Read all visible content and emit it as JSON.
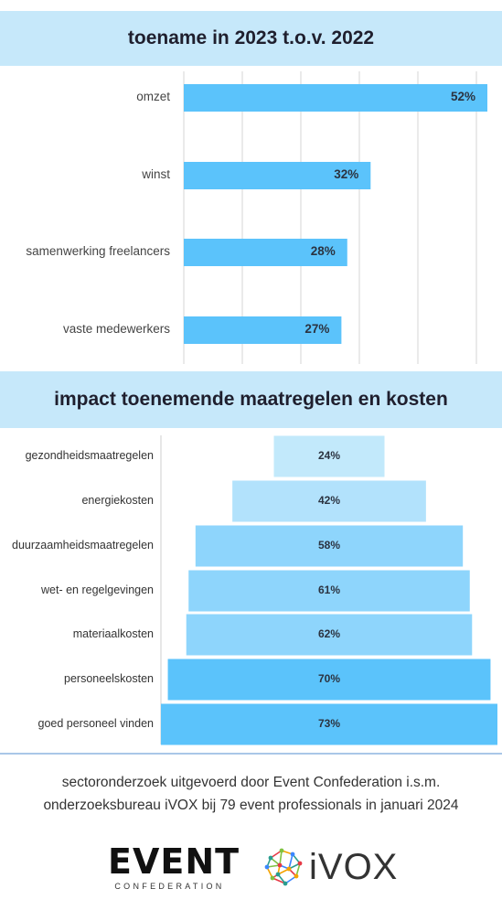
{
  "chart_data": [
    {
      "type": "bar",
      "orientation": "horizontal",
      "title": "toename in 2023 t.o.v. 2022",
      "categories": [
        "omzet",
        "winst",
        "samenwerking freelancers",
        "vaste medewerkers"
      ],
      "values": [
        52,
        32,
        28,
        27
      ],
      "value_labels": [
        "52%",
        "32%",
        "28%",
        "27%"
      ],
      "xlim": [
        0,
        52
      ],
      "grid": true,
      "colors": {
        "bar": "#5bc3fb",
        "grid": "#d5d5d5"
      }
    },
    {
      "type": "bar",
      "subtype": "funnel",
      "title": "impact toenemende maatregelen en kosten",
      "categories": [
        "gezondheidsmaatregelen",
        "energiekosten",
        "duurzaamheidsmaatregelen",
        "wet- en regelgevingen",
        "materiaalkosten",
        "personeelskosten",
        "goed personeel vinden"
      ],
      "values": [
        24,
        42,
        58,
        61,
        62,
        70,
        73
      ],
      "value_labels": [
        "24%",
        "42%",
        "58%",
        "61%",
        "62%",
        "70%",
        "73%"
      ],
      "xlim": [
        0,
        73
      ],
      "colors": [
        "#c2e9fb",
        "#b2e2fc",
        "#8ed5fc",
        "#8ed5fc",
        "#8ed5fc",
        "#5bc3fb",
        "#5bc3fb"
      ]
    }
  ],
  "footer": {
    "line1": "sectoronderzoek uitgevoerd door Event Confederation i.s.m.",
    "line2": "onderzoeksbureau iVOX bij 79 event professionals in januari 2024"
  },
  "logos": {
    "event": {
      "word": "EVENT",
      "sub": "CONFEDERATION"
    },
    "ivox": {
      "word": "iVOX",
      "colors": [
        "#e63946",
        "#f4a300",
        "#2a9d8f",
        "#7fc241",
        "#3a86ff"
      ]
    }
  }
}
